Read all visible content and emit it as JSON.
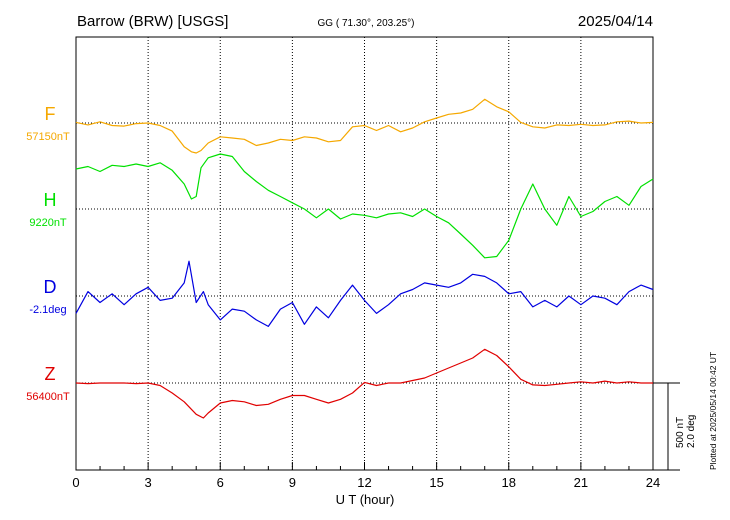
{
  "header": {
    "station": "Barrow (BRW)  [USGS]",
    "coords": "GG ( 71.30°, 203.25°)",
    "date": "2025/04/14"
  },
  "footer": {
    "xlabel": "U T (hour)",
    "plotted": "Plotted at 2025/05/14 00:42 UT"
  },
  "scale_bar": {
    "line1": "500 nT",
    "line2": "2.0 deg"
  },
  "colors": {
    "F": "#f5a800",
    "H": "#00e000",
    "D": "#0000e0",
    "Z": "#e00000",
    "text": "#000000"
  },
  "chart_data": {
    "type": "line",
    "xlim": [
      0,
      24
    ],
    "xticks": [
      "0",
      "3",
      "6",
      "9",
      "12",
      "15",
      "18",
      "21",
      "24"
    ],
    "grid": true,
    "series": [
      {
        "name": "F",
        "baseline": "57150nT",
        "color": "#f5a800",
        "x": [
          0,
          0.5,
          1,
          1.5,
          2,
          2.5,
          3,
          3.5,
          4,
          4.5,
          4.8,
          5,
          5.2,
          5.5,
          6,
          6.5,
          7,
          7.5,
          8,
          8.5,
          9,
          9.5,
          10,
          10.5,
          11,
          11.5,
          12,
          12.5,
          13,
          13.5,
          14,
          14.5,
          15,
          15.5,
          16,
          16.5,
          17,
          17.5,
          18,
          18.5,
          19,
          19.5,
          20,
          20.5,
          21,
          21.5,
          22,
          22.5,
          23,
          23.5,
          24
        ],
        "y": [
          5,
          -15,
          10,
          -20,
          -25,
          -5,
          0,
          -20,
          -65,
          -190,
          -230,
          -240,
          -220,
          -160,
          -110,
          -120,
          -130,
          -180,
          -160,
          -130,
          -140,
          -110,
          -120,
          -150,
          -140,
          -30,
          -20,
          -60,
          -20,
          -70,
          -40,
          10,
          40,
          70,
          80,
          110,
          190,
          130,
          90,
          5,
          -30,
          -40,
          -15,
          -20,
          -10,
          -20,
          -15,
          10,
          15,
          0,
          5
        ]
      },
      {
        "name": "H",
        "baseline": "9220nT",
        "color": "#00e000",
        "x": [
          0,
          0.5,
          1,
          1.5,
          2,
          2.5,
          3,
          3.5,
          4,
          4.5,
          4.8,
          5,
          5.2,
          5.5,
          6,
          6.5,
          7,
          7.5,
          8,
          8.5,
          9,
          9.5,
          10,
          10.5,
          11,
          11.5,
          12,
          12.5,
          13,
          13.5,
          14,
          14.5,
          15,
          15.5,
          16,
          16.5,
          17,
          17.5,
          18,
          18.5,
          19,
          19.5,
          20,
          20.5,
          21,
          21.5,
          22,
          22.5,
          23,
          23.5,
          24
        ],
        "y": [
          320,
          340,
          300,
          350,
          340,
          360,
          340,
          370,
          310,
          200,
          80,
          100,
          330,
          410,
          440,
          420,
          300,
          220,
          150,
          100,
          50,
          0,
          -70,
          0,
          -80,
          -40,
          -50,
          -70,
          -40,
          -30,
          -60,
          0,
          -60,
          -110,
          -200,
          -290,
          -390,
          -380,
          -250,
          0,
          200,
          0,
          -130,
          100,
          -60,
          -20,
          60,
          100,
          30,
          180,
          240
        ]
      },
      {
        "name": "D",
        "baseline": "-2.1deg",
        "color": "#0000e0",
        "x": [
          0,
          0.5,
          1,
          1.5,
          2,
          2.5,
          3,
          3.5,
          4,
          4.5,
          4.7,
          5,
          5.3,
          5.5,
          6,
          6.5,
          7,
          7.5,
          8,
          8.5,
          9,
          9.5,
          10,
          10.5,
          11,
          11.5,
          12,
          12.5,
          13,
          13.5,
          14,
          14.5,
          15,
          15.5,
          16,
          16.5,
          17,
          17.5,
          18,
          18.5,
          19,
          19.5,
          20,
          20.5,
          21,
          21.5,
          22,
          22.5,
          23,
          23.5,
          24
        ],
        "y": [
          -0.8,
          0.2,
          -0.3,
          0.1,
          -0.4,
          0.1,
          0.4,
          -0.2,
          -0.1,
          0.6,
          1.6,
          -0.3,
          0.2,
          -0.4,
          -1.1,
          -0.6,
          -0.7,
          -1.1,
          -1.4,
          -0.6,
          -0.3,
          -1.3,
          -0.5,
          -1.0,
          -0.2,
          0.5,
          -0.2,
          -0.8,
          -0.4,
          0.1,
          0.3,
          0.6,
          0.5,
          0.4,
          0.6,
          1.0,
          0.9,
          0.6,
          0.1,
          0.2,
          -0.5,
          -0.2,
          -0.5,
          0.0,
          -0.4,
          0.0,
          -0.1,
          -0.4,
          0.2,
          0.5,
          0.3
        ]
      },
      {
        "name": "Z",
        "baseline": "56400nT",
        "color": "#e00000",
        "x": [
          0,
          0.5,
          1,
          1.5,
          2,
          2.5,
          3,
          3.5,
          4,
          4.5,
          5,
          5.3,
          5.5,
          6,
          6.5,
          7,
          7.5,
          8,
          8.5,
          9,
          9.5,
          10,
          10.5,
          11,
          11.5,
          12,
          12.5,
          13,
          13.5,
          14,
          14.5,
          15,
          15.5,
          16,
          16.5,
          17,
          17.5,
          18,
          18.5,
          19,
          19.5,
          20,
          20.5,
          21,
          21.5,
          22,
          22.5,
          23,
          23.5,
          24
        ],
        "y": [
          0,
          -5,
          0,
          0,
          0,
          -5,
          0,
          -20,
          -80,
          -150,
          -250,
          -280,
          -240,
          -160,
          -140,
          -150,
          -180,
          -170,
          -130,
          -100,
          -100,
          -130,
          -160,
          -130,
          -80,
          5,
          -20,
          0,
          0,
          20,
          40,
          80,
          120,
          160,
          200,
          270,
          220,
          130,
          30,
          -15,
          -20,
          -10,
          0,
          10,
          0,
          15,
          0,
          10,
          0,
          0
        ]
      }
    ]
  }
}
